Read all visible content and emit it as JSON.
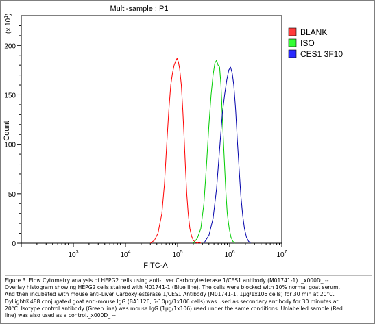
{
  "chart_data": {
    "type": "line",
    "title": "Multi-sample : P1",
    "xlabel": "FITC-A",
    "ylabel": "Count",
    "y_multiplier": "(x 10^1)",
    "xscale": "log",
    "xlim": [
      100,
      10000000
    ],
    "ylim": [
      0,
      230
    ],
    "x_tick_labels": [
      "10^3",
      "10^4",
      "10^5",
      "10^6",
      "10^7"
    ],
    "y_tick_labels": [
      "0",
      "50",
      "100",
      "150",
      "200"
    ],
    "grid": false,
    "legend_position": "top-right",
    "series": [
      {
        "name": "BLANK",
        "color": "#ff0000",
        "swatch_color": "#ff3a3a",
        "x": [
          30000,
          36000,
          42000,
          50000,
          56000,
          62000,
          68000,
          74000,
          80000,
          86000,
          92000,
          98000,
          104000,
          110000,
          118000,
          126000,
          134000,
          142000,
          150000,
          160000,
          172000,
          186000,
          200000,
          220000,
          240000,
          260000,
          280000
        ],
        "y": [
          0,
          3,
          10,
          30,
          60,
          100,
          135,
          160,
          172,
          180,
          184,
          187,
          183,
          176,
          160,
          135,
          105,
          75,
          50,
          30,
          15,
          7,
          3,
          1,
          0,
          1,
          0
        ]
      },
      {
        "name": "ISO",
        "color": "#00cc00",
        "swatch_color": "#33ff33",
        "x": [
          200000,
          240000,
          280000,
          320000,
          360000,
          400000,
          440000,
          480000,
          520000,
          560000,
          600000,
          640000,
          680000,
          720000,
          780000,
          840000,
          900000,
          980000,
          1060000,
          1150000,
          1250000
        ],
        "y": [
          0,
          5,
          15,
          40,
          80,
          120,
          150,
          170,
          182,
          185,
          180,
          178,
          160,
          130,
          90,
          55,
          30,
          15,
          6,
          2,
          0
        ]
      },
      {
        "name": "CES1 3F10",
        "color": "#0000aa",
        "swatch_color": "#2a2aff",
        "x": [
          320000,
          400000,
          480000,
          560000,
          640000,
          720000,
          800000,
          880000,
          960000,
          1040000,
          1120000,
          1200000,
          1300000,
          1400000,
          1520000,
          1640000,
          1780000,
          1920000,
          2100000,
          2300000,
          2500000
        ],
        "y": [
          0,
          8,
          25,
          55,
          95,
          130,
          150,
          165,
          175,
          178,
          172,
          160,
          135,
          105,
          75,
          48,
          28,
          15,
          6,
          2,
          0
        ]
      }
    ],
    "caption": "Figure 3. Flow Cytometry analysis of HEPG2 cells using anti-Liver Carboxylesterase 1/CES1 antibody (M01741-1). _x000D_ --\nOverlay histogram showing HEPG2 cells stained with M01741-1 (Blue line). The cells were blocked with 10% normal goat serum.\nAnd then incubated with mouse anti-Liver Carboxylesterase 1/CES1 Antibody (M01741-1, 1µg/1x106 cells) for 30 min at 20°C.\nDyLight®488 conjugated goat anti-mouse IgG (BA1126, 5-10µg/1x106 cells) was used as secondary antibody for 30 minutes at\n20°C. Isotype control antibody (Green line) was mouse IgG (1µg/1x106) used under the same conditions. Unlabelled sample (Red\nline) was also used as a control._x000D_ --"
  }
}
